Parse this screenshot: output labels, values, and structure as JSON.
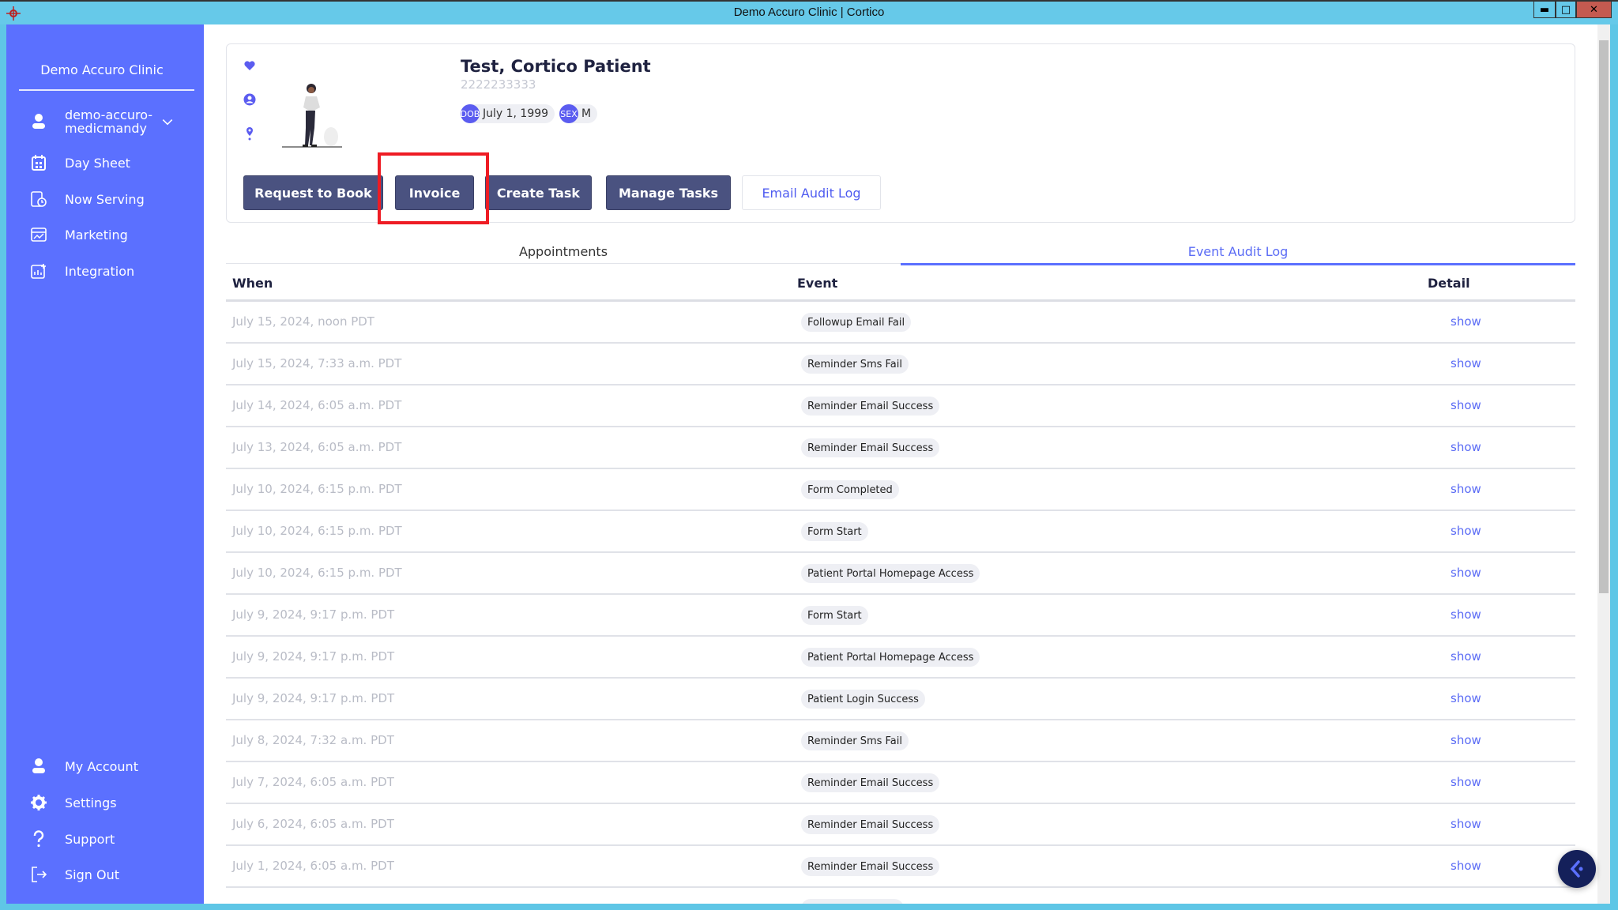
{
  "window": {
    "title": "Demo Accuro Clinic | Cortico",
    "close_color": "#c45a50"
  },
  "colors": {
    "sidebar": "#5b70ff",
    "titlebar": "#66c9e9",
    "button": "#4a5280",
    "accent": "#5b6cf5",
    "highlight": "#ee1c24"
  },
  "sidebar": {
    "clinic": "Demo Accuro Clinic",
    "user": "demo-accuro-medicmandy",
    "user_line1": "demo-accuro-",
    "user_line2": "medicmandy",
    "items": [
      {
        "label": "Day Sheet",
        "icon": "calendar-icon"
      },
      {
        "label": "Now Serving",
        "icon": "clock-list-icon"
      },
      {
        "label": "Marketing",
        "icon": "marketing-icon"
      },
      {
        "label": "Integration",
        "icon": "integration-icon"
      }
    ],
    "bottom": [
      {
        "label": "My Account",
        "icon": "user-icon"
      },
      {
        "label": "Settings",
        "icon": "gear-icon"
      },
      {
        "label": "Support",
        "icon": "question-icon"
      },
      {
        "label": "Sign Out",
        "icon": "sign-out-icon"
      }
    ]
  },
  "patient": {
    "name": "Test, Cortico Patient",
    "phn": "2222233333",
    "dob_label": "DOB",
    "dob": "July 1, 1999",
    "sex_label": "SEX",
    "sex": "M"
  },
  "actions": {
    "request": "Request to Book",
    "invoice": "Invoice",
    "create_task": "Create Task",
    "manage_tasks": "Manage Tasks",
    "email_audit": "Email Audit Log"
  },
  "tabs": [
    {
      "label": "Appointments",
      "active": false
    },
    {
      "label": "Event Audit Log",
      "active": true
    }
  ],
  "table": {
    "headers": {
      "when": "When",
      "event": "Event",
      "detail": "Detail"
    },
    "rows": [
      {
        "when": "July 15, 2024, noon PDT",
        "event": "Followup Email Fail",
        "detail": "show"
      },
      {
        "when": "July 15, 2024, 7:33 a.m. PDT",
        "event": "Reminder Sms Fail",
        "detail": "show"
      },
      {
        "when": "July 14, 2024, 6:05 a.m. PDT",
        "event": "Reminder Email Success",
        "detail": "show"
      },
      {
        "when": "July 13, 2024, 6:05 a.m. PDT",
        "event": "Reminder Email Success",
        "detail": "show"
      },
      {
        "when": "July 10, 2024, 6:15 p.m. PDT",
        "event": "Form Completed",
        "detail": "show"
      },
      {
        "when": "July 10, 2024, 6:15 p.m. PDT",
        "event": "Form Start",
        "detail": "show"
      },
      {
        "when": "July 10, 2024, 6:15 p.m. PDT",
        "event": "Patient Portal Homepage Access",
        "detail": "show"
      },
      {
        "when": "July 9, 2024, 9:17 p.m. PDT",
        "event": "Form Start",
        "detail": "show"
      },
      {
        "when": "July 9, 2024, 9:17 p.m. PDT",
        "event": "Patient Portal Homepage Access",
        "detail": "show"
      },
      {
        "when": "July 9, 2024, 9:17 p.m. PDT",
        "event": "Patient Login Success",
        "detail": "show"
      },
      {
        "when": "July 8, 2024, 7:32 a.m. PDT",
        "event": "Reminder Sms Fail",
        "detail": "show"
      },
      {
        "when": "July 7, 2024, 6:05 a.m. PDT",
        "event": "Reminder Email Success",
        "detail": "show"
      },
      {
        "when": "July 6, 2024, 6:05 a.m. PDT",
        "event": "Reminder Email Success",
        "detail": "show"
      },
      {
        "when": "July 1, 2024, 6:05 a.m. PDT",
        "event": "Reminder Email Success",
        "detail": "show"
      }
    ]
  }
}
